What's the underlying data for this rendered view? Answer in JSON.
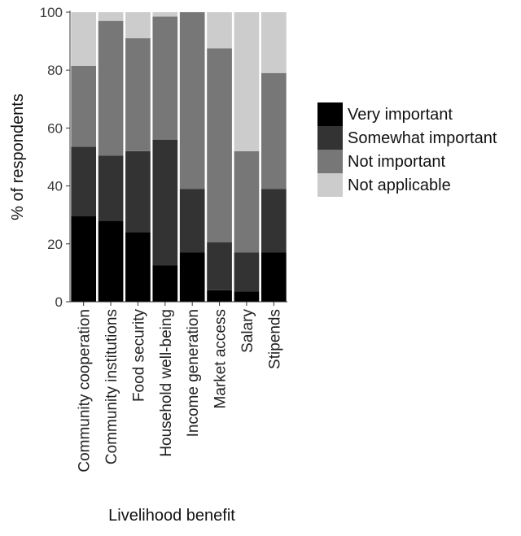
{
  "chart_data": {
    "type": "bar",
    "stacked": true,
    "xlabel": "Livelihood benefit",
    "ylabel": "% of respondents",
    "ylim": [
      0,
      100
    ],
    "yticks": [
      0,
      20,
      40,
      60,
      80,
      100
    ],
    "grid": false,
    "legend_position": "right",
    "categories": [
      "Community cooperation",
      "Community institutions",
      "Food security",
      "Household well-being",
      "Income generation",
      "Market access",
      "Salary",
      "Stipends"
    ],
    "series": [
      {
        "name": "Very important",
        "color": "#000000",
        "values": [
          29.5,
          28,
          24,
          12.5,
          17,
          4,
          3.5,
          17
        ]
      },
      {
        "name": "Somewhat important",
        "color": "#333333",
        "values": [
          24,
          22.5,
          28,
          43.5,
          22,
          16.5,
          13.5,
          22
        ]
      },
      {
        "name": "Not important",
        "color": "#777777",
        "values": [
          28,
          46.5,
          39,
          42.5,
          61,
          67,
          35,
          40
        ]
      },
      {
        "name": "Not applicable",
        "color": "#cccccc",
        "values": [
          18.5,
          3,
          9,
          1.5,
          0,
          12.5,
          48,
          21
        ]
      }
    ]
  }
}
